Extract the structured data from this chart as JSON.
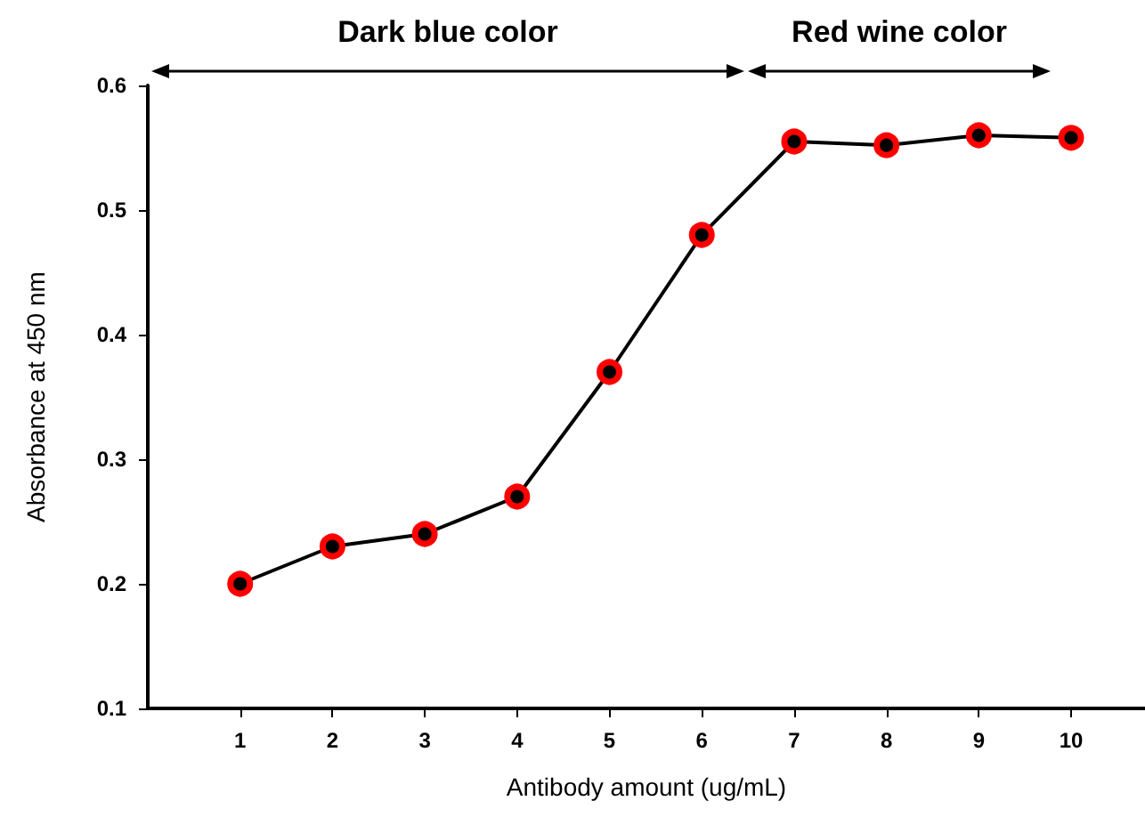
{
  "chart_data": {
    "type": "line",
    "xlabel": "Antibody amount (ug/mL)",
    "ylabel": "Absorbance at 450 nm",
    "x": [
      1,
      2,
      3,
      4,
      5,
      6,
      7,
      8,
      9,
      10
    ],
    "series": [
      {
        "color": "#ff0000",
        "values": [
          0.2,
          0.23,
          0.24,
          0.27,
          0.37,
          0.48,
          0.555,
          0.552,
          0.56,
          0.558
        ]
      }
    ],
    "xlim": [
      0,
      10.8
    ],
    "xticks": [
      1,
      2,
      3,
      4,
      5,
      6,
      7,
      8,
      9,
      10
    ],
    "ylim": [
      0.1,
      0.6
    ],
    "yticks": [
      0.1,
      0.2,
      0.3,
      0.4,
      0.5,
      0.6
    ],
    "annotations": [
      "Dark blue color",
      "Red wine color"
    ],
    "grid": false,
    "marker": "circle",
    "line_style": "solid"
  }
}
